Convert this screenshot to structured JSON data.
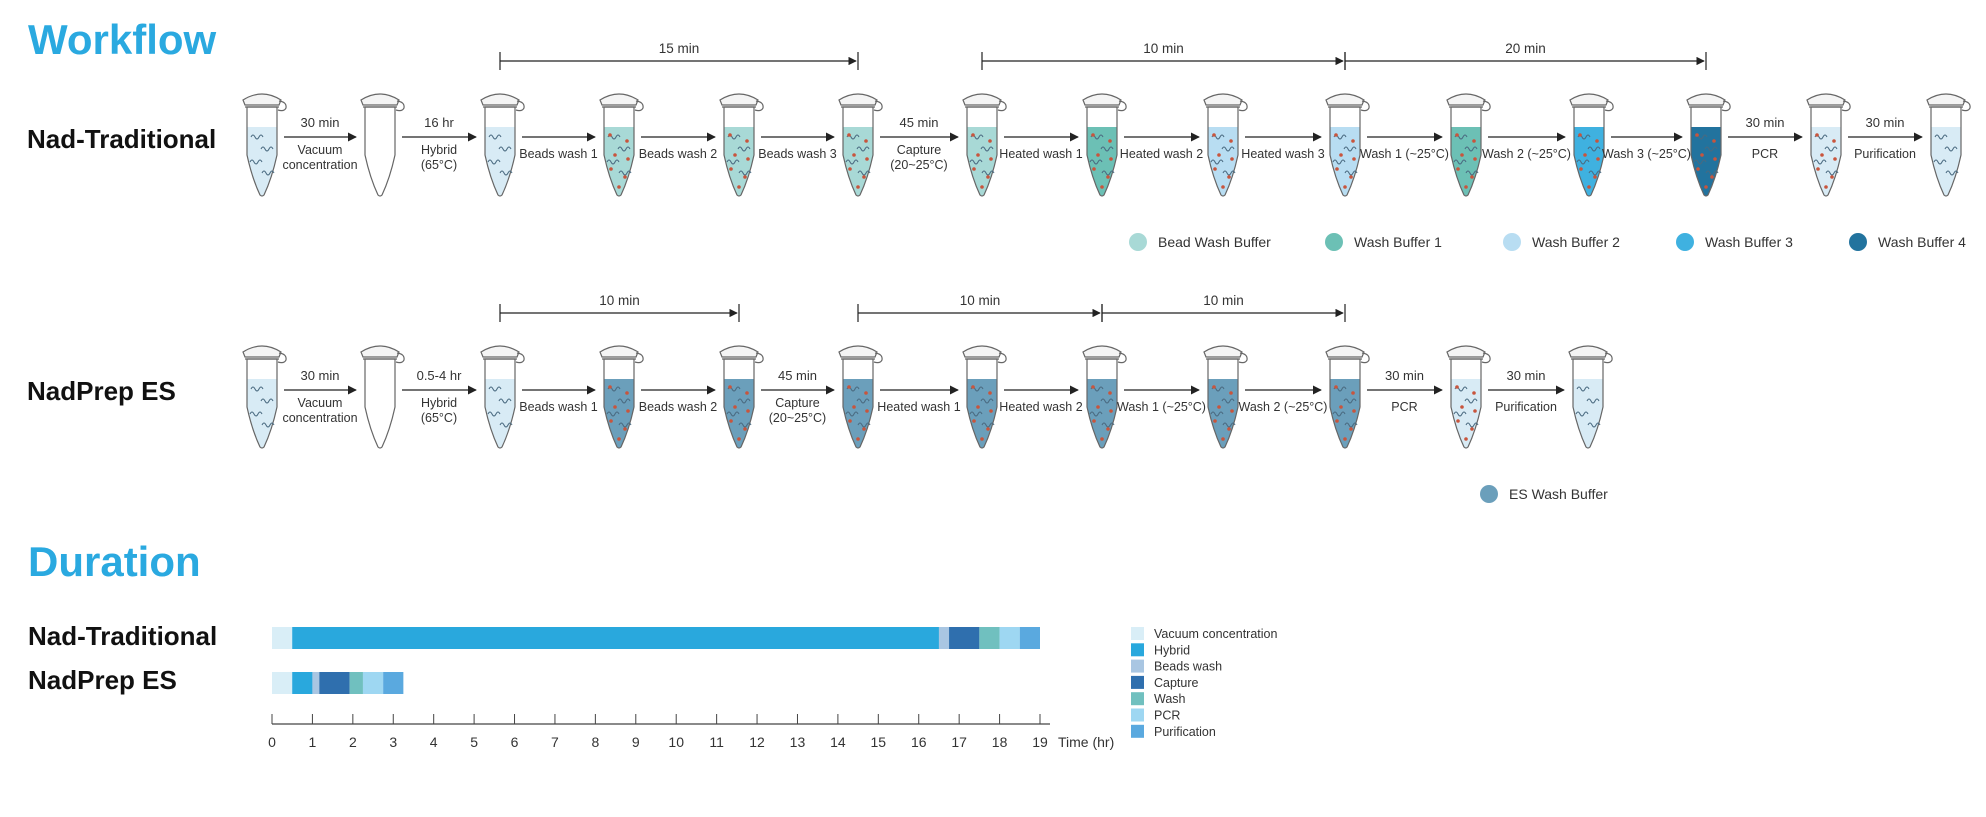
{
  "workflow_title": "Workflow",
  "duration_title": "Duration",
  "colors": {
    "title": "#2aa9e0",
    "bead_wash_buffer": "#a8d9d6",
    "wash_buffer_1": "#6cc0b5",
    "wash_buffer_2": "#b8ddf2",
    "wash_buffer_3": "#3fb1e0",
    "wash_buffer_4": "#22739e",
    "es_wash_buffer": "#6b9fbb",
    "sample_liquid": "#d8ebf5",
    "bead_dot": "#c8553d"
  },
  "traditional": {
    "label": "Nad-Traditional",
    "tubes": [
      {
        "fill": "sample",
        "beads": false
      },
      {
        "fill": "none",
        "beads": false
      },
      {
        "fill": "sample",
        "beads": false
      },
      {
        "fill": "bead_wash_buffer",
        "beads": true
      },
      {
        "fill": "bead_wash_buffer",
        "beads": true
      },
      {
        "fill": "bead_wash_buffer",
        "beads": true
      },
      {
        "fill": "bead_wash_buffer",
        "beads": true
      },
      {
        "fill": "wash_buffer_1",
        "beads": true
      },
      {
        "fill": "wash_buffer_2",
        "beads": true
      },
      {
        "fill": "wash_buffer_2",
        "beads": true
      },
      {
        "fill": "wash_buffer_1",
        "beads": true
      },
      {
        "fill": "wash_buffer_3",
        "beads": true
      },
      {
        "fill": "wash_buffer_4",
        "beads": true
      },
      {
        "fill": "sample",
        "beads": true
      },
      {
        "fill": "sample",
        "beads": false
      }
    ],
    "steps": [
      {
        "top": "30 min",
        "bottom": [
          "Vacuum",
          "concentration"
        ]
      },
      {
        "top": "16 hr",
        "bottom": [
          "Hybrid",
          "(65°C)"
        ]
      },
      {
        "top": "",
        "bottom": [
          "Beads wash 1"
        ]
      },
      {
        "top": "",
        "bottom": [
          "Beads wash 2"
        ]
      },
      {
        "top": "",
        "bottom": [
          "Beads wash 3"
        ]
      },
      {
        "top": "45 min",
        "bottom": [
          "Capture",
          "(20~25°C)"
        ]
      },
      {
        "top": "",
        "bottom": [
          "Heated wash 1"
        ]
      },
      {
        "top": "",
        "bottom": [
          "Heated wash 2"
        ]
      },
      {
        "top": "",
        "bottom": [
          "Heated wash 3"
        ]
      },
      {
        "top": "",
        "bottom": [
          "Wash 1 (~25°C)"
        ]
      },
      {
        "top": "",
        "bottom": [
          "Wash 2 (~25°C)"
        ]
      },
      {
        "top": "",
        "bottom": [
          "Wash 3 (~25°C)"
        ]
      },
      {
        "top": "30 min",
        "bottom": [
          "PCR"
        ]
      },
      {
        "top": "30 min",
        "bottom": [
          "Purification"
        ]
      }
    ],
    "brackets": [
      {
        "label": "15 min",
        "from": 2,
        "to": 5
      },
      {
        "label": "10 min",
        "from": 6,
        "to": 9
      },
      {
        "label": "20 min",
        "from": 9,
        "to": 12
      }
    ],
    "legend": [
      {
        "label": "Bead Wash Buffer",
        "color": "bead_wash_buffer"
      },
      {
        "label": "Wash Buffer 1",
        "color": "wash_buffer_1"
      },
      {
        "label": "Wash Buffer 2",
        "color": "wash_buffer_2"
      },
      {
        "label": "Wash Buffer 3",
        "color": "wash_buffer_3"
      },
      {
        "label": "Wash Buffer 4",
        "color": "wash_buffer_4"
      }
    ]
  },
  "es": {
    "label": "NadPrep ES",
    "tubes": [
      {
        "fill": "sample",
        "beads": false
      },
      {
        "fill": "none",
        "beads": false
      },
      {
        "fill": "sample",
        "beads": false
      },
      {
        "fill": "es_wash_buffer",
        "beads": true
      },
      {
        "fill": "es_wash_buffer",
        "beads": true
      },
      {
        "fill": "es_wash_buffer",
        "beads": true
      },
      {
        "fill": "es_wash_buffer",
        "beads": true
      },
      {
        "fill": "es_wash_buffer",
        "beads": true
      },
      {
        "fill": "es_wash_buffer",
        "beads": true
      },
      {
        "fill": "es_wash_buffer",
        "beads": true
      },
      {
        "fill": "sample",
        "beads": true
      },
      {
        "fill": "sample",
        "beads": false
      }
    ],
    "steps": [
      {
        "top": "30 min",
        "bottom": [
          "Vacuum",
          "concentration"
        ]
      },
      {
        "top": "0.5-4 hr",
        "bottom": [
          "Hybrid",
          "(65°C)"
        ]
      },
      {
        "top": "",
        "bottom": [
          "Beads wash 1"
        ]
      },
      {
        "top": "",
        "bottom": [
          "Beads wash 2"
        ]
      },
      {
        "top": "45 min",
        "bottom": [
          "Capture",
          "(20~25°C)"
        ]
      },
      {
        "top": "",
        "bottom": [
          "Heated wash 1"
        ]
      },
      {
        "top": "",
        "bottom": [
          "Heated wash 2"
        ]
      },
      {
        "top": "",
        "bottom": [
          "Wash 1 (~25°C)"
        ]
      },
      {
        "top": "",
        "bottom": [
          "Wash 2 (~25°C)"
        ]
      },
      {
        "top": "30 min",
        "bottom": [
          "PCR"
        ]
      },
      {
        "top": "30 min",
        "bottom": [
          "Purification"
        ]
      }
    ],
    "brackets": [
      {
        "label": "10 min",
        "from": 2,
        "to": 4
      },
      {
        "label": "10 min",
        "from": 5,
        "to": 7
      },
      {
        "label": "10 min",
        "from": 7,
        "to": 9
      }
    ],
    "legend": [
      {
        "label": "ES Wash Buffer",
        "color": "es_wash_buffer"
      }
    ]
  },
  "chart_data": {
    "type": "bar",
    "orientation": "horizontal-stacked",
    "categories": [
      "Nad-Traditional",
      "NadPrep ES"
    ],
    "xlabel": "Time (hr)",
    "xlim": [
      0,
      19
    ],
    "xticks": [
      "0",
      "1",
      "2",
      "3",
      "4",
      "5",
      "6",
      "7",
      "8",
      "9",
      "10",
      "11",
      "12",
      "13",
      "14",
      "15",
      "16",
      "17",
      "18",
      "19"
    ],
    "series": [
      {
        "name": "Vacuum concentration",
        "color": "#d9eef7",
        "values": [
          0.5,
          0.5
        ]
      },
      {
        "name": "Hybrid",
        "color": "#29a8dd",
        "values": [
          16,
          0.5
        ]
      },
      {
        "name": "Beads wash",
        "color": "#a9c6e2",
        "values": [
          0.25,
          0.17
        ]
      },
      {
        "name": "Capture",
        "color": "#2f6fae",
        "values": [
          0.75,
          0.75
        ]
      },
      {
        "name": "Wash",
        "color": "#70c0bf",
        "values": [
          0.5,
          0.33
        ]
      },
      {
        "name": "PCR",
        "color": "#9ed7f2",
        "values": [
          0.5,
          0.5
        ]
      },
      {
        "name": "Purification",
        "color": "#5aa9df",
        "values": [
          0.5,
          0.5
        ]
      }
    ]
  }
}
